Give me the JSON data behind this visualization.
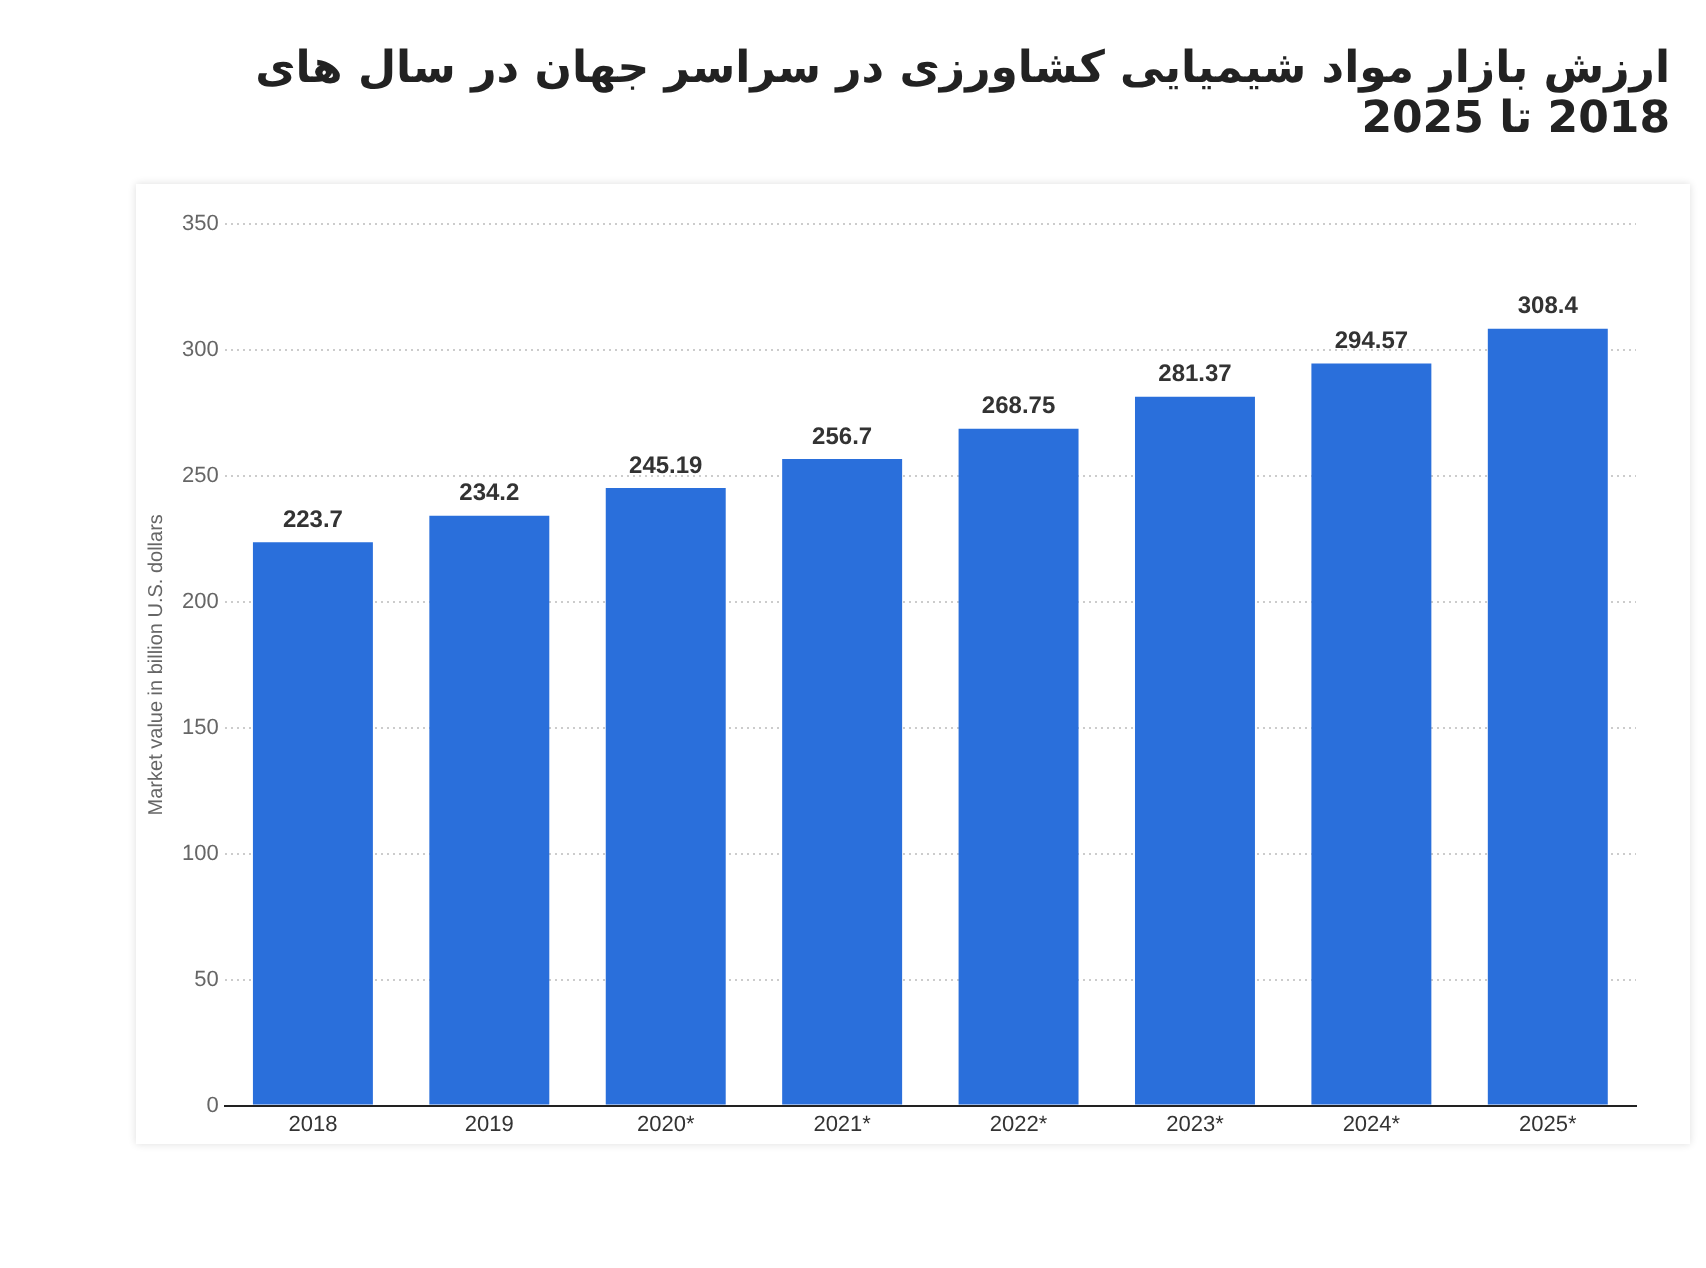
{
  "chart_data": {
    "type": "bar",
    "title": "ارزش بازار مواد شیمیایی کشاورزی در سراسر جهان در سال های 2018 تا 2025",
    "ylabel": "Market value in billion U.S. dollars",
    "categories": [
      "2018",
      "2019",
      "2020*",
      "2021*",
      "2022*",
      "2023*",
      "2024*",
      "2025*"
    ],
    "values": [
      223.7,
      234.2,
      245.19,
      256.7,
      268.75,
      281.37,
      294.57,
      308.4
    ],
    "color": "#2a6fdb",
    "ylim": [
      0,
      350
    ],
    "yticks": [
      0,
      50,
      100,
      150,
      200,
      250,
      300,
      350
    ],
    "grid": "y",
    "data_labels": true
  }
}
